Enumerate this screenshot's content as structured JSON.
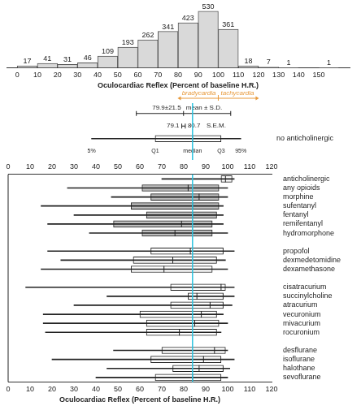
{
  "chart_data": [
    {
      "type": "histogram",
      "bins": [
        0,
        10,
        20,
        30,
        40,
        50,
        60,
        70,
        80,
        90,
        100,
        110,
        120,
        130,
        140,
        150,
        160
      ],
      "values": [
        17,
        41,
        31,
        46,
        109,
        193,
        262,
        341,
        423,
        530,
        361,
        18,
        7,
        1,
        null,
        1
      ],
      "color": "#d9d9d9",
      "xlabel": "Oculocardiac Reflex (Percent of baseline H.R.)",
      "xlim": [
        0,
        160
      ],
      "xticks": [
        0,
        10,
        20,
        30,
        40,
        50,
        60,
        70,
        80,
        90,
        100,
        110,
        120,
        130,
        140,
        150
      ],
      "ylim": [
        0,
        560
      ],
      "data_labels": true,
      "tick_labels": "x",
      "grid": false,
      "annotation": {
        "x": 100,
        "left_text": "bradycardia",
        "right_text": "tachycardia"
      }
    },
    {
      "type": "boxplot",
      "orientation": "horizontal",
      "xlabel": "Oculocardiac Reflex (Percent of baseline H.R.)",
      "xlim": [
        0,
        120
      ],
      "xticks": [
        0,
        10,
        20,
        30,
        40,
        50,
        60,
        70,
        80,
        90,
        100,
        110,
        120
      ],
      "grid": false,
      "summary": {
        "mean": 79.9,
        "sd": 21.5,
        "label": "79.9±21.5",
        "caption": "mean ± S.D.",
        "sem": [
          79.1,
          80.7
        ],
        "sem_labels": [
          "79.1",
          "80.7"
        ],
        "sem_caption": "S.E.M."
      },
      "reference": {
        "name": "no anticholinergic",
        "stats": [
          38,
          67,
          84,
          97,
          106
        ],
        "stat_labels": [
          "5%",
          "Q1",
          "median",
          "Q3",
          "95%"
        ],
        "color": "#ffffff"
      },
      "groups": [
        [
          {
            "name": "anticholinergic",
            "stats": [
              70,
              97,
              99,
              102,
              103
            ],
            "color": "#ffffff"
          },
          {
            "name": "any opioids",
            "stats": [
              27,
              61,
              82,
              96,
              100
            ],
            "color": "#bdbdbd"
          },
          {
            "name": "morphine",
            "stats": [
              47,
              65,
              87,
              96,
              100
            ],
            "color": "#bdbdbd"
          },
          {
            "name": "sufentanyl",
            "stats": [
              15,
              56,
              84,
              96,
              98
            ],
            "color": "#bdbdbd"
          },
          {
            "name": "fentanyl",
            "stats": [
              30,
              63,
              84,
              95,
              98
            ],
            "color": "#bdbdbd"
          },
          {
            "name": "remifentanyl",
            "stats": [
              18,
              48,
              79,
              93,
              98
            ],
            "color": "#bdbdbd"
          },
          {
            "name": "hydromorphone",
            "stats": [
              37,
              61,
              76,
              93,
              100
            ],
            "color": "#bdbdbd"
          }
        ],
        [
          {
            "name": "propofol",
            "stats": [
              18,
              65,
              83,
              98,
              103
            ],
            "color": "#ffffff"
          },
          {
            "name": "dexmedetomidine",
            "stats": [
              24,
              57,
              75,
              95,
              99
            ],
            "color": "#ffffff"
          },
          {
            "name": "dexamethasone",
            "stats": [
              15,
              56,
              71,
              93,
              100
            ],
            "color": "#ffffff"
          }
        ],
        [
          {
            "name": "cisatracurium",
            "stats": [
              8,
              74,
              97,
              99,
              103
            ],
            "color": "#ffffff"
          },
          {
            "name": "succinylcholine",
            "stats": [
              45,
              82,
              86,
              98,
              103
            ],
            "color": "#ffffff"
          },
          {
            "name": "atracurium",
            "stats": [
              30,
              74,
              92,
              98,
              102
            ],
            "color": "#ffffff"
          },
          {
            "name": "vecuronium",
            "stats": [
              16,
              60,
              88,
              95,
              98
            ],
            "color": "#ffffff"
          },
          {
            "name": "mivacurium",
            "stats": [
              16,
              63,
              85,
              96,
              100
            ],
            "color": "#ffffff"
          },
          {
            "name": "rocuronium",
            "stats": [
              17,
              63,
              78,
              95,
              97
            ],
            "color": "#ffffff"
          }
        ],
        [
          {
            "name": "desflurane",
            "stats": [
              48,
              70,
              94,
              99,
              100
            ],
            "color": "#ffffff"
          },
          {
            "name": "isoflurane",
            "stats": [
              20,
              65,
              89,
              97,
              103
            ],
            "color": "#ffffff"
          },
          {
            "name": "halothane",
            "stats": [
              45,
              75,
              87,
              98,
              101
            ],
            "color": "#ffffff"
          },
          {
            "name": "sevoflurane",
            "stats": [
              40,
              67,
              84,
              97,
              100
            ],
            "color": "#ffffff"
          }
        ]
      ]
    }
  ]
}
